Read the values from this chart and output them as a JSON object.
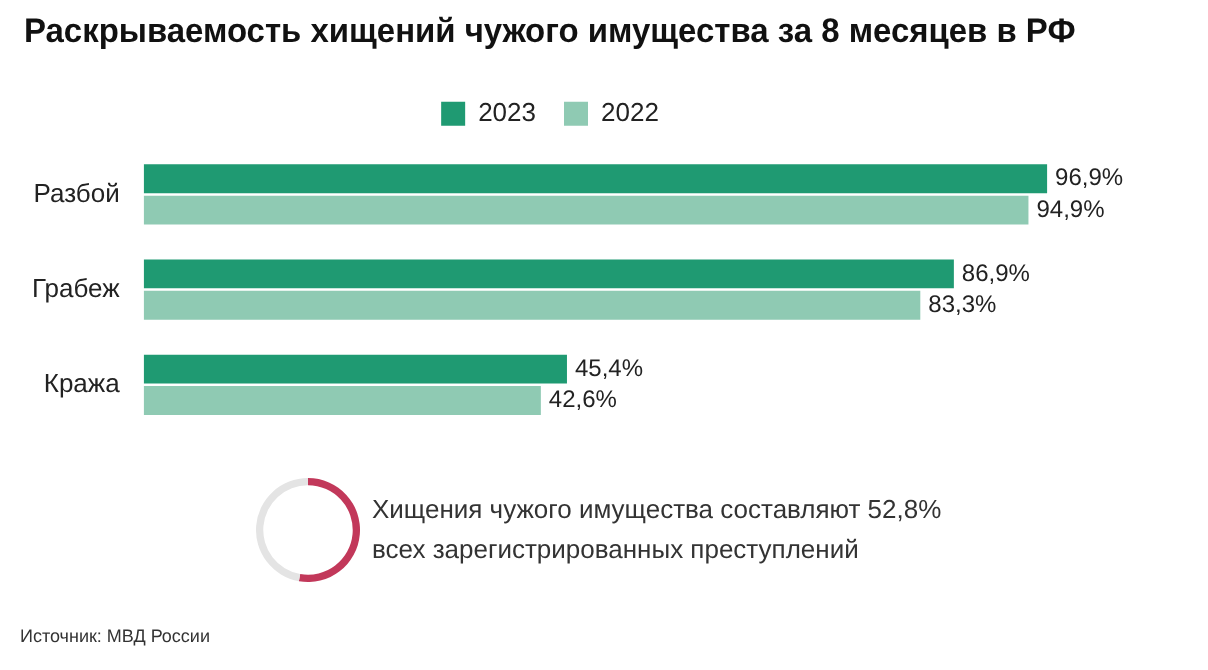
{
  "chart_data": [
    {
      "type": "bar",
      "orientation": "horizontal",
      "title": "Раскрываемость хищений чужого имущества за 8 месяцев в РФ",
      "categories": [
        "Разбой",
        "Грабеж",
        "Кража"
      ],
      "legend": "top",
      "grid": false,
      "tick_labels": "y",
      "series": [
        {
          "name": "2023",
          "color": "#1f9a72",
          "values": [
            96.9,
            86.9,
            45.4
          ],
          "value_labels": [
            "96,9%",
            "86,9%",
            "45,4%"
          ]
        },
        {
          "name": "2022",
          "color": "#8fcab3",
          "values": [
            94.9,
            83.3,
            42.6
          ],
          "value_labels": [
            "94,9%",
            "83,3%",
            "42,6%"
          ]
        }
      ],
      "annotations": [
        "Источник: МВД России"
      ]
    },
    {
      "type": "donut",
      "categories": [
        null,
        null
      ],
      "values": [
        52.8,
        47.2
      ],
      "colors": [
        "#c2385a",
        "#e4e4e4"
      ],
      "legend": false,
      "annotations": [
        "Хищения чужого имущества составляют 52,8% всех зарегистрированных преступлений"
      ]
    }
  ]
}
